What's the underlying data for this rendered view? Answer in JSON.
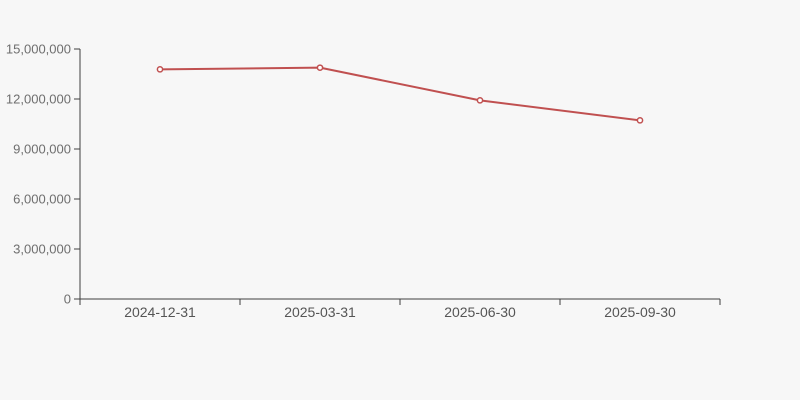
{
  "page": {
    "background_color": "#f7f7f7"
  },
  "chart_data": {
    "type": "line",
    "title": "",
    "subtitle": "",
    "xlabel": "",
    "ylabel": "",
    "categories": [
      "2024-12-31",
      "2025-03-31",
      "2025-06-30",
      "2025-09-30"
    ],
    "values": [
      13780000,
      13880000,
      11920000,
      10720000
    ],
    "ylim": [
      0,
      15000000
    ],
    "y_ticks": [
      0,
      3000000,
      6000000,
      9000000,
      12000000,
      15000000
    ],
    "y_tick_labels": [
      "0",
      "3,000,000",
      "6,000,000",
      "9,000,000",
      "12,000,000",
      "15,000,000"
    ],
    "grid": false,
    "legend": false,
    "line_color": "#c05050",
    "marker_style": "open-circle",
    "marker_fill": "#ffffff",
    "axis_color": "#3f3f3f",
    "y_label_color": "#6e6e6e",
    "x_label_color": "#555555"
  }
}
